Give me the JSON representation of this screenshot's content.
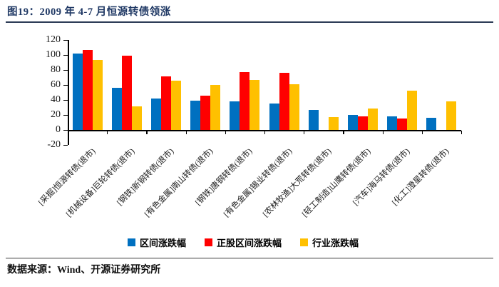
{
  "figure": {
    "title": "图19：2009 年 4-7 月恒源转债领涨",
    "source": "数据来源：Wind、开源证券研究所"
  },
  "chart_data": {
    "type": "bar",
    "title": "2009 年 4-7 月恒源转债领涨",
    "categories": [
      "[采掘]恒源转债(退市)",
      "[机械设备]巨轮转债(退市)",
      "[钢铁]新钢转债(退市)",
      "[有色金属]南山转债(退市)",
      "[钢铁]唐钢转债(退市)",
      "[有色金属]锡业转债(退市)",
      "[农林牧渔]大荒转债(退市)",
      "[轻工制造]山鹰转债(退市)",
      "[汽车]海马转债(退市)",
      "[化工]澄星转债(退市)"
    ],
    "series": [
      {
        "name": "区间涨跌幅",
        "color": "#0070C0",
        "values": [
          102,
          56,
          42,
          39,
          38,
          35,
          27,
          20,
          18,
          16
        ]
      },
      {
        "name": "正股区间涨跌幅",
        "color": "#FF0000",
        "values": [
          107,
          99,
          71,
          46,
          77,
          76,
          0,
          18,
          15,
          0
        ]
      },
      {
        "name": "行业涨跌幅",
        "color": "#FFC000",
        "values": [
          93,
          31,
          66,
          60,
          67,
          61,
          17,
          29,
          52,
          38
        ]
      }
    ],
    "ylim": [
      -20,
      120
    ],
    "yticks": [
      120,
      100,
      80,
      60,
      40,
      20,
      0,
      -20
    ],
    "grid": false,
    "legend_position": "bottom",
    "xlabel": "",
    "ylabel": ""
  }
}
